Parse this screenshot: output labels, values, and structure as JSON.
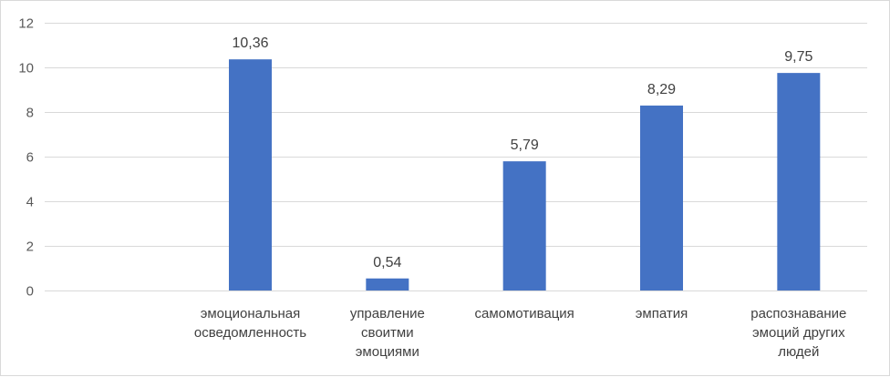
{
  "chart_data": {
    "type": "bar",
    "categories": [
      "",
      "эмоциональная осведомленность",
      "управление своитми эмоциями",
      "самомотивация",
      "эмпатия",
      "распознавание эмоций других людей"
    ],
    "category_lines": [
      [],
      [
        "эмоциональная",
        "осведомленность"
      ],
      [
        "управление",
        "своитми",
        "эмоциями"
      ],
      [
        "самомотивация"
      ],
      [
        "эмпатия"
      ],
      [
        "распознавание",
        "эмоций других",
        "людей"
      ]
    ],
    "values": [
      null,
      10.36,
      0.54,
      5.79,
      8.29,
      9.75
    ],
    "data_labels": [
      "",
      "10,36",
      "0,54",
      "5,79",
      "8,29",
      "9,75"
    ],
    "yticks": [
      0,
      2,
      4,
      6,
      8,
      10,
      12
    ],
    "ylim": [
      0,
      12
    ],
    "grid": true,
    "bar_color": "#4472c4",
    "title": "",
    "xlabel": "",
    "ylabel": ""
  }
}
